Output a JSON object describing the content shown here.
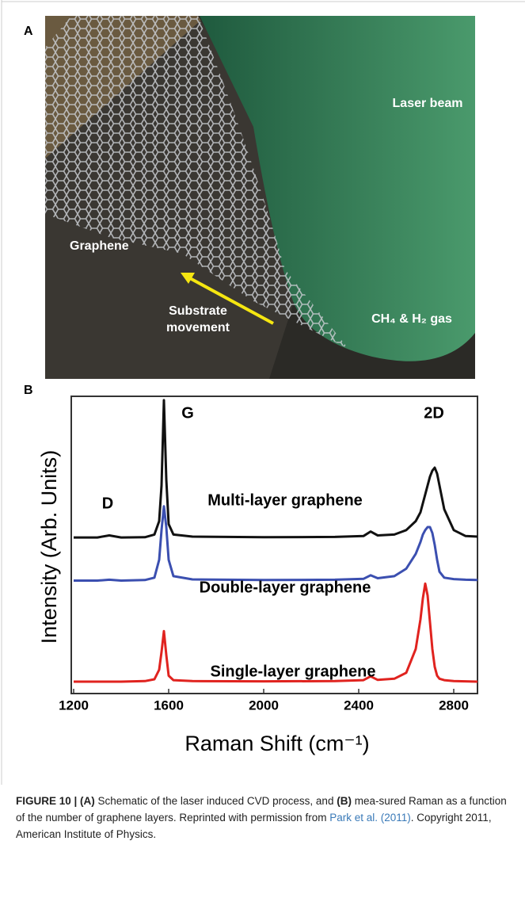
{
  "panel_a": {
    "label": "A",
    "texts": {
      "laser": "Laser beam",
      "graphene": "Graphene",
      "substrate_1": "Substrate",
      "substrate_2": "movement",
      "gas": "CH₄ & H₂ gas"
    }
  },
  "panel_b_label": "B",
  "chart_data": {
    "type": "line",
    "ylabel": "Intensity (Arb. Units)",
    "xlabel": "Raman Shift (cm⁻¹)",
    "peak_labels": [
      "G",
      "D",
      "2D"
    ],
    "x": [
      1200,
      1300,
      1350,
      1400,
      1500,
      1540,
      1560,
      1570,
      1580,
      1590,
      1600,
      1620,
      1700,
      2000,
      2300,
      2420,
      2450,
      2480,
      2550,
      2600,
      2640,
      2660,
      2670,
      2680,
      2690,
      2700,
      2710,
      2720,
      2730,
      2740,
      2760,
      2800,
      2850,
      2900
    ],
    "xlim": [
      1200,
      2900
    ],
    "xticks": [
      1200,
      1600,
      2000,
      2400,
      2800
    ],
    "ylim": [
      0,
      100
    ],
    "series": [
      {
        "name": "Multi-layer graphene",
        "color": "#111111",
        "values": [
          52.5,
          52.5,
          53.2,
          52.5,
          52.6,
          53.5,
          58,
          70,
          98.7,
          72,
          57,
          53.5,
          52.8,
          52.6,
          52.7,
          53,
          54.5,
          53.2,
          53.5,
          55,
          58,
          61,
          64,
          67,
          70,
          73,
          75,
          76,
          74,
          70,
          62,
          55,
          53,
          52.8
        ]
      },
      {
        "name": "Double-layer graphene",
        "color": "#3b4fb0",
        "values": [
          38,
          38,
          38.3,
          38,
          38.2,
          39,
          45,
          55,
          63,
          56,
          45,
          39.5,
          38.4,
          38.2,
          38.3,
          38.6,
          39.8,
          38.8,
          39.5,
          42,
          47,
          51,
          53.5,
          55,
          56,
          56,
          54,
          50,
          45,
          41,
          39,
          38.5,
          38.3,
          38.2
        ]
      },
      {
        "name": "Single-layer graphene",
        "color": "#e0231f",
        "values": [
          4,
          4,
          4,
          4,
          4.2,
          4.8,
          8,
          14,
          21,
          13,
          6,
          4.5,
          4.2,
          4.1,
          4.2,
          4.5,
          5.8,
          4.6,
          5,
          7,
          15,
          25,
          32,
          37,
          33,
          24,
          15,
          9,
          6,
          5,
          4.5,
          4.2,
          4.1,
          4
        ]
      }
    ]
  },
  "caption": {
    "segments": [
      "FIGURE 10 | (A)",
      " Schematic of the laser induced CVD process, and ",
      "(B)",
      " mea-sured Raman as a function of the number of graphene layers. Reprinted with permission from ",
      "Park et al. (2011)",
      ". Copyright 2011, American Institute of Physics."
    ]
  }
}
